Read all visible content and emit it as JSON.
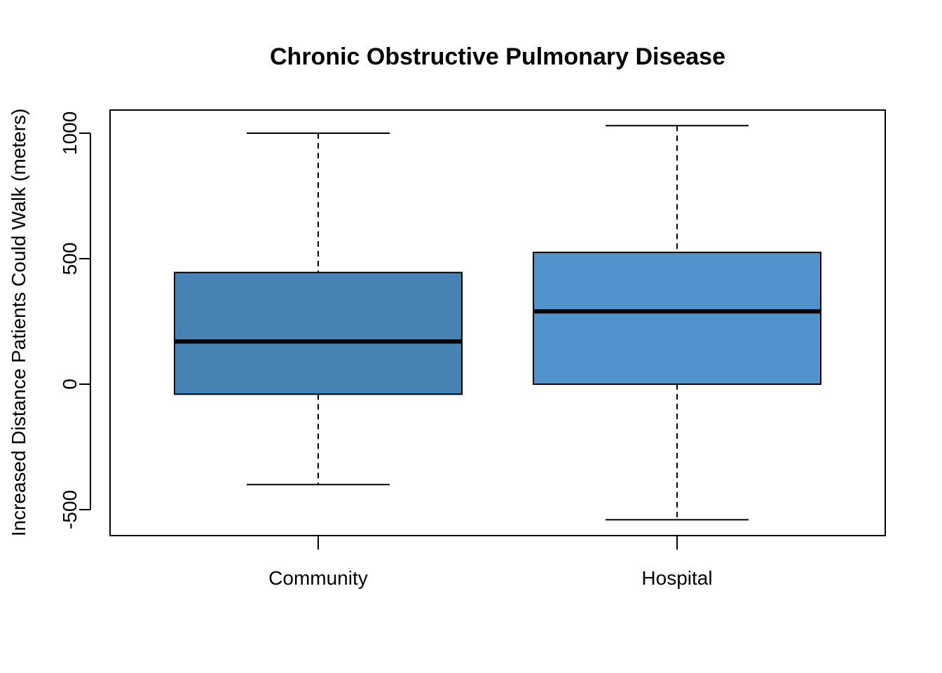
{
  "chart_data": {
    "type": "boxplot",
    "title": "Chronic Obstructive Pulmonary Disease",
    "xlabel": "",
    "ylabel": "Increased Distance Patients Could Walk (meters)",
    "ylim": [
      -600,
      1100
    ],
    "yticks": [
      -500,
      0,
      500,
      1000
    ],
    "ytick_labels": [
      "-500",
      "0",
      "500",
      "1000"
    ],
    "categories": [
      "Community",
      "Hospital"
    ],
    "boxes": [
      {
        "category": "Community",
        "whisker_low": -400,
        "q1": -40,
        "median": 170,
        "q3": 445,
        "whisker_high": 1000,
        "color": "#4682B4"
      },
      {
        "category": "Hospital",
        "whisker_low": -540,
        "q1": 0,
        "median": 290,
        "q3": 525,
        "whisker_high": 1030,
        "color": "#4F94CD"
      }
    ],
    "grid": false,
    "legend": "none"
  }
}
